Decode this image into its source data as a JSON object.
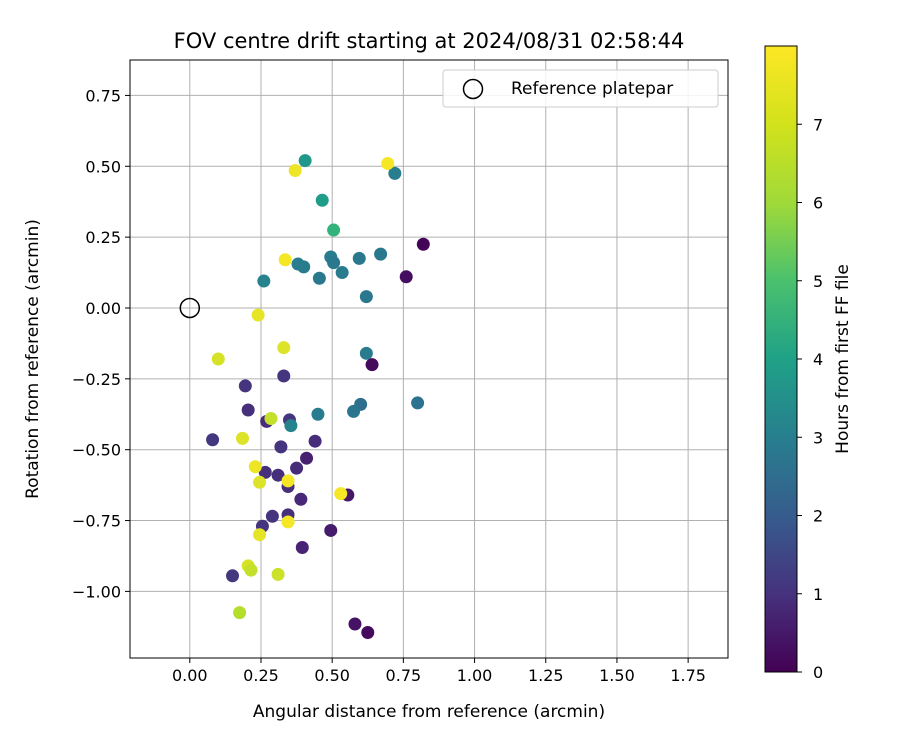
{
  "chart_data": {
    "type": "scatter",
    "title": "FOV centre drift starting at 2024/08/31 02:58:44",
    "xlabel": "Angular distance from reference (arcmin)",
    "ylabel": "Rotation from reference (arcmin)",
    "xlim": [
      -0.21,
      1.89
    ],
    "ylim": [
      -1.235,
      0.875
    ],
    "xticks": [
      0.0,
      0.25,
      0.5,
      0.75,
      1.0,
      1.25,
      1.5,
      1.75
    ],
    "xtick_labels": [
      "0.00",
      "0.25",
      "0.50",
      "0.75",
      "1.00",
      "1.25",
      "1.50",
      "1.75"
    ],
    "yticks": [
      -1.0,
      -0.75,
      -0.5,
      -0.25,
      0.0,
      0.25,
      0.5,
      0.75
    ],
    "ytick_labels": [
      "−1.00",
      "−0.75",
      "−0.50",
      "−0.25",
      "0.00",
      "0.25",
      "0.50",
      "0.75"
    ],
    "grid": true,
    "legend": {
      "placement": "top-right",
      "entries": [
        "Reference platepar"
      ]
    },
    "reference_point": {
      "label": "Reference platepar",
      "x": 0.0,
      "y": 0.0
    },
    "colorbar": {
      "label": "Hours from first FF file",
      "colormap": "viridis",
      "range": [
        0,
        8
      ],
      "ticks": [
        0,
        1,
        2,
        3,
        4,
        5,
        6,
        7
      ],
      "tick_labels": [
        "0",
        "1",
        "2",
        "3",
        "4",
        "5",
        "6",
        "7"
      ]
    },
    "points": [
      {
        "x": 0.82,
        "y": 0.225,
        "h": 0.1
      },
      {
        "x": 0.76,
        "y": 0.11,
        "h": 0.3
      },
      {
        "x": 0.64,
        "y": -0.2,
        "h": 0.2
      },
      {
        "x": 0.58,
        "y": -1.115,
        "h": 0.4
      },
      {
        "x": 0.625,
        "y": -1.145,
        "h": 0.2
      },
      {
        "x": 0.555,
        "y": -0.66,
        "h": 0.5
      },
      {
        "x": 0.495,
        "y": -0.785,
        "h": 0.6
      },
      {
        "x": 0.41,
        "y": -0.53,
        "h": 0.7
      },
      {
        "x": 0.395,
        "y": -0.845,
        "h": 0.8
      },
      {
        "x": 0.39,
        "y": -0.675,
        "h": 0.9
      },
      {
        "x": 0.44,
        "y": -0.47,
        "h": 1.0
      },
      {
        "x": 0.375,
        "y": -0.565,
        "h": 1.0
      },
      {
        "x": 0.345,
        "y": -0.63,
        "h": 1.1
      },
      {
        "x": 0.345,
        "y": -0.73,
        "h": 1.1
      },
      {
        "x": 0.32,
        "y": -0.49,
        "h": 1.2
      },
      {
        "x": 0.35,
        "y": -0.395,
        "h": 1.2
      },
      {
        "x": 0.31,
        "y": -0.59,
        "h": 1.1
      },
      {
        "x": 0.29,
        "y": -0.735,
        "h": 1.2
      },
      {
        "x": 0.265,
        "y": -0.58,
        "h": 1.1
      },
      {
        "x": 0.255,
        "y": -0.77,
        "h": 1.2
      },
      {
        "x": 0.27,
        "y": -0.4,
        "h": 1.0
      },
      {
        "x": 0.33,
        "y": -0.24,
        "h": 1.2
      },
      {
        "x": 0.205,
        "y": -0.36,
        "h": 1.1
      },
      {
        "x": 0.195,
        "y": -0.275,
        "h": 1.2
      },
      {
        "x": 0.08,
        "y": -0.465,
        "h": 1.3
      },
      {
        "x": 0.15,
        "y": -0.945,
        "h": 1.3
      },
      {
        "x": 0.8,
        "y": -0.335,
        "h": 3.0
      },
      {
        "x": 0.6,
        "y": -0.34,
        "h": 2.9
      },
      {
        "x": 0.575,
        "y": -0.365,
        "h": 3.1
      },
      {
        "x": 0.45,
        "y": -0.375,
        "h": 3.3
      },
      {
        "x": 0.355,
        "y": -0.415,
        "h": 3.6
      },
      {
        "x": 0.62,
        "y": -0.16,
        "h": 3.3
      },
      {
        "x": 0.62,
        "y": 0.04,
        "h": 3.2
      },
      {
        "x": 0.595,
        "y": 0.175,
        "h": 3.2
      },
      {
        "x": 0.67,
        "y": 0.19,
        "h": 3.2
      },
      {
        "x": 0.72,
        "y": 0.475,
        "h": 3.4
      },
      {
        "x": 0.495,
        "y": 0.18,
        "h": 3.3
      },
      {
        "x": 0.505,
        "y": 0.16,
        "h": 3.2
      },
      {
        "x": 0.535,
        "y": 0.125,
        "h": 3.3
      },
      {
        "x": 0.455,
        "y": 0.105,
        "h": 3.2
      },
      {
        "x": 0.38,
        "y": 0.155,
        "h": 3.4
      },
      {
        "x": 0.4,
        "y": 0.145,
        "h": 3.3
      },
      {
        "x": 0.26,
        "y": 0.095,
        "h": 3.6
      },
      {
        "x": 0.405,
        "y": 0.52,
        "h": 4.3
      },
      {
        "x": 0.465,
        "y": 0.38,
        "h": 4.4
      },
      {
        "x": 0.505,
        "y": 0.275,
        "h": 5.2
      },
      {
        "x": 0.37,
        "y": 0.485,
        "h": 7.8
      },
      {
        "x": 0.695,
        "y": 0.51,
        "h": 7.9
      },
      {
        "x": 0.335,
        "y": 0.17,
        "h": 7.9
      },
      {
        "x": 0.24,
        "y": -0.025,
        "h": 7.7
      },
      {
        "x": 0.1,
        "y": -0.18,
        "h": 7.5
      },
      {
        "x": 0.33,
        "y": -0.14,
        "h": 7.6
      },
      {
        "x": 0.285,
        "y": -0.39,
        "h": 7.3
      },
      {
        "x": 0.185,
        "y": -0.46,
        "h": 7.6
      },
      {
        "x": 0.23,
        "y": -0.56,
        "h": 7.8
      },
      {
        "x": 0.245,
        "y": -0.615,
        "h": 7.6
      },
      {
        "x": 0.345,
        "y": -0.61,
        "h": 7.9
      },
      {
        "x": 0.53,
        "y": -0.655,
        "h": 7.9
      },
      {
        "x": 0.345,
        "y": -0.755,
        "h": 7.9
      },
      {
        "x": 0.245,
        "y": -0.8,
        "h": 7.7
      },
      {
        "x": 0.205,
        "y": -0.91,
        "h": 7.5
      },
      {
        "x": 0.215,
        "y": -0.925,
        "h": 7.3
      },
      {
        "x": 0.31,
        "y": -0.94,
        "h": 7.4
      },
      {
        "x": 0.175,
        "y": -1.075,
        "h": 7.1
      }
    ]
  }
}
